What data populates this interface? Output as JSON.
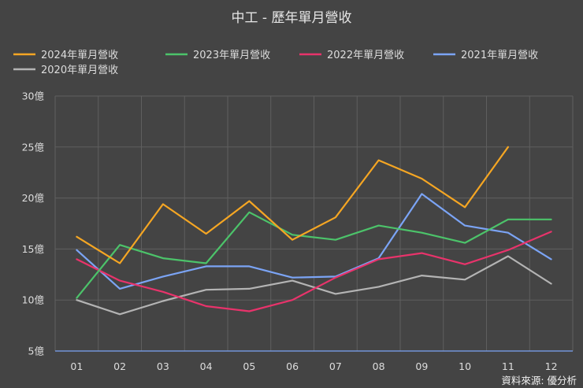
{
  "chart_data": {
    "type": "line",
    "title": "中工 - 歷年單月營收",
    "xlabel": "",
    "ylabel": "",
    "ylim": [
      5,
      30
    ],
    "y_ticks": [
      "5億",
      "10億",
      "15億",
      "20億",
      "25億",
      "30億"
    ],
    "y_tick_values": [
      5,
      10,
      15,
      20,
      25,
      30
    ],
    "categories": [
      "01",
      "02",
      "03",
      "04",
      "05",
      "06",
      "07",
      "08",
      "09",
      "10",
      "11",
      "12"
    ],
    "legend_position": "top",
    "grid": true,
    "series": [
      {
        "name": "2024年單月營收",
        "color": "#f5a623",
        "values": [
          16.2,
          13.6,
          19.4,
          16.5,
          19.7,
          15.9,
          18.1,
          23.7,
          21.9,
          19.1,
          25.0,
          null
        ]
      },
      {
        "name": "2023年單月營收",
        "color": "#4cc36a",
        "values": [
          10.2,
          15.4,
          14.1,
          13.6,
          18.6,
          16.4,
          15.9,
          17.3,
          16.6,
          15.6,
          17.9,
          17.9
        ]
      },
      {
        "name": "2022年單月營收",
        "color": "#e8336b",
        "values": [
          14.0,
          11.9,
          10.8,
          9.4,
          8.9,
          10.0,
          12.2,
          14.0,
          14.6,
          13.5,
          14.9,
          16.7
        ]
      },
      {
        "name": "2021年單月營收",
        "color": "#7ba4f5",
        "values": [
          14.9,
          11.1,
          12.3,
          13.3,
          13.3,
          12.2,
          12.3,
          14.1,
          20.4,
          17.3,
          16.6,
          14.0
        ]
      },
      {
        "name": "2020年單月營收",
        "color": "#b4b4b4",
        "values": [
          10.0,
          8.6,
          9.9,
          11.0,
          11.1,
          11.9,
          10.6,
          11.3,
          12.4,
          12.0,
          14.3,
          11.6
        ]
      }
    ]
  },
  "source_text": "資料來源: 優分析"
}
